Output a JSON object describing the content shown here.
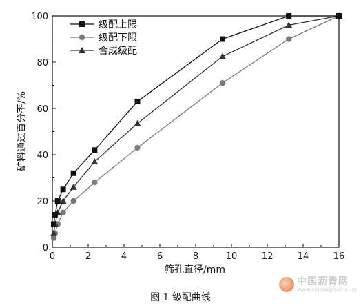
{
  "chart_data": {
    "type": "line",
    "title": "",
    "xlabel": "筛孔直径/mm",
    "ylabel": "矿料通过百分率/%",
    "xlim": [
      0,
      16
    ],
    "ylim": [
      0,
      100
    ],
    "x_ticks": [
      0,
      2,
      4,
      6,
      8,
      10,
      12,
      14,
      16
    ],
    "y_ticks": [
      0,
      20,
      40,
      60,
      80,
      100
    ],
    "grid": false,
    "legend_position": "top-left",
    "x": [
      0.075,
      0.15,
      0.3,
      0.6,
      1.18,
      2.36,
      4.75,
      9.5,
      13.2,
      16
    ],
    "series": [
      {
        "name": "级配上限",
        "marker": "square",
        "color": "#111111",
        "values": [
          10,
          14,
          20,
          25,
          32,
          42,
          63,
          90,
          100,
          100
        ]
      },
      {
        "name": "级配下限",
        "marker": "circle",
        "color": "#7a7a7a",
        "values": [
          4,
          6,
          10,
          15,
          20,
          28,
          43,
          71,
          90,
          100
        ]
      },
      {
        "name": "合成级配",
        "marker": "triangle",
        "color": "#333333",
        "values": [
          6,
          10,
          15,
          20,
          26,
          37,
          53.5,
          82.5,
          96,
          100
        ]
      }
    ]
  },
  "caption": "图 1    级配曲线",
  "watermark": {
    "name": "中国沥青网",
    "url": "www.sinoasphalt.com"
  }
}
